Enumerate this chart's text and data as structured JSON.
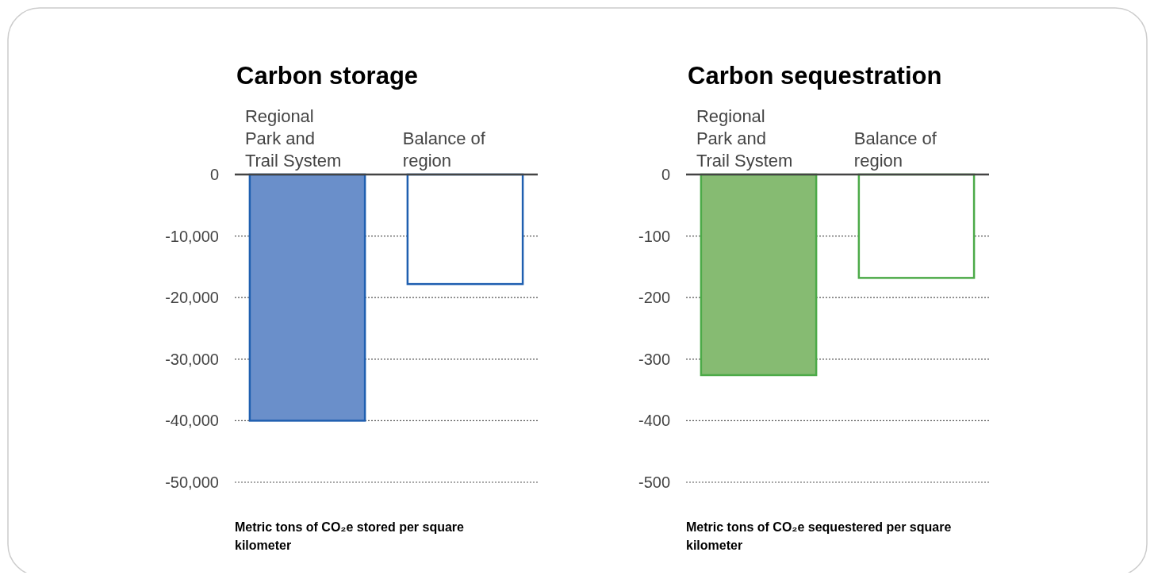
{
  "chart_data": [
    {
      "type": "bar",
      "title": "Carbon storage",
      "categories": [
        "Regional Park and Trail System",
        "Balance of region"
      ],
      "series": [
        {
          "color": "#1f5fb0",
          "colors": [
            "#6a8fca",
            "#ffffff"
          ],
          "values": [
            -40000,
            -17800
          ]
        }
      ],
      "ylim": [
        -50000,
        0
      ],
      "yticks": [
        {
          "value": 0,
          "label": "0"
        },
        {
          "value": -10000,
          "label": "-10,000"
        },
        {
          "value": -20000,
          "label": "-20,000"
        },
        {
          "value": -30000,
          "label": "-30,000"
        },
        {
          "value": -40000,
          "label": "-40,000"
        },
        {
          "value": -50000,
          "label": "-50,000"
        }
      ],
      "grid": "y",
      "annotations": [
        "Metric tons of CO₂e stored per square kilometer"
      ]
    },
    {
      "type": "bar",
      "title": "Carbon sequestration",
      "categories": [
        "Regional Park and Trail System",
        "Balance of region"
      ],
      "series": [
        {
          "color": "#4caa48",
          "colors": [
            "#86bb72",
            "#ffffff"
          ],
          "values": [
            -326,
            -168
          ]
        }
      ],
      "ylim": [
        -500,
        0
      ],
      "yticks": [
        0,
        -100,
        -200,
        -300,
        -400,
        -500
      ],
      "grid": "y",
      "annotations": [
        "Metric tons of CO₂e sequestered per square kilometer"
      ]
    }
  ]
}
